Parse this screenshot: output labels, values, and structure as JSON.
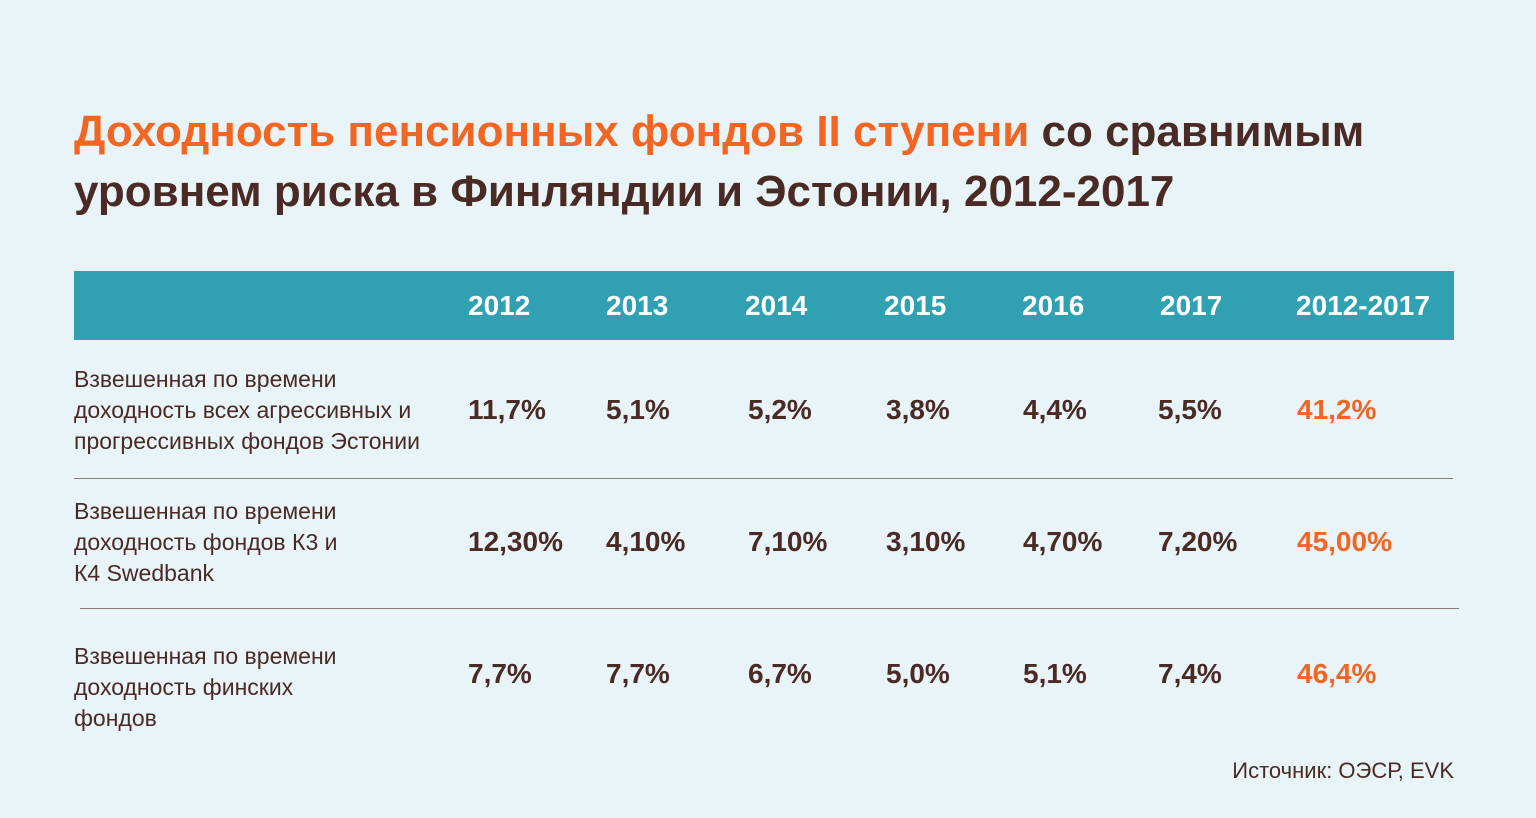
{
  "chart_data": {
    "type": "table",
    "title_accent": "Доходность пенсионных фондов II ступени",
    "title_rest": "со сравнимым уровнем риска в Финляндии и Эстонии, 2012-2017",
    "columns": [
      "2012",
      "2013",
      "2014",
      "2015",
      "2016",
      "2017",
      "2012-2017"
    ],
    "rows": [
      {
        "label_lines": [
          "Взвешенная по времени",
          "доходность всех агрессивных и",
          "прогрессивных фондов Эстонии"
        ],
        "values": [
          "11,7%",
          "5,1%",
          "5,2%",
          "3,8%",
          "4,4%",
          "5,5%",
          "41,2%"
        ]
      },
      {
        "label_lines": [
          "Взвешенная по времени",
          "доходность фондов К3 и",
          "К4 Swedbank"
        ],
        "values": [
          "12,30%",
          "4,10%",
          "7,10%",
          "3,10%",
          "4,70%",
          "7,20%",
          "45,00%"
        ]
      },
      {
        "label_lines": [
          "Взвешенная по времени",
          "доходность финских",
          "фондов"
        ],
        "values": [
          "7,7%",
          "7,7%",
          "6,7%",
          "5,0%",
          "5,1%",
          "7,4%",
          "46,4%"
        ]
      }
    ],
    "source": "Источник: ОЭСР, EVK"
  },
  "colors": {
    "accent": "#f26522",
    "header": "#2fa1b2",
    "text": "#4a2a24",
    "background": "#e8f4f7"
  }
}
